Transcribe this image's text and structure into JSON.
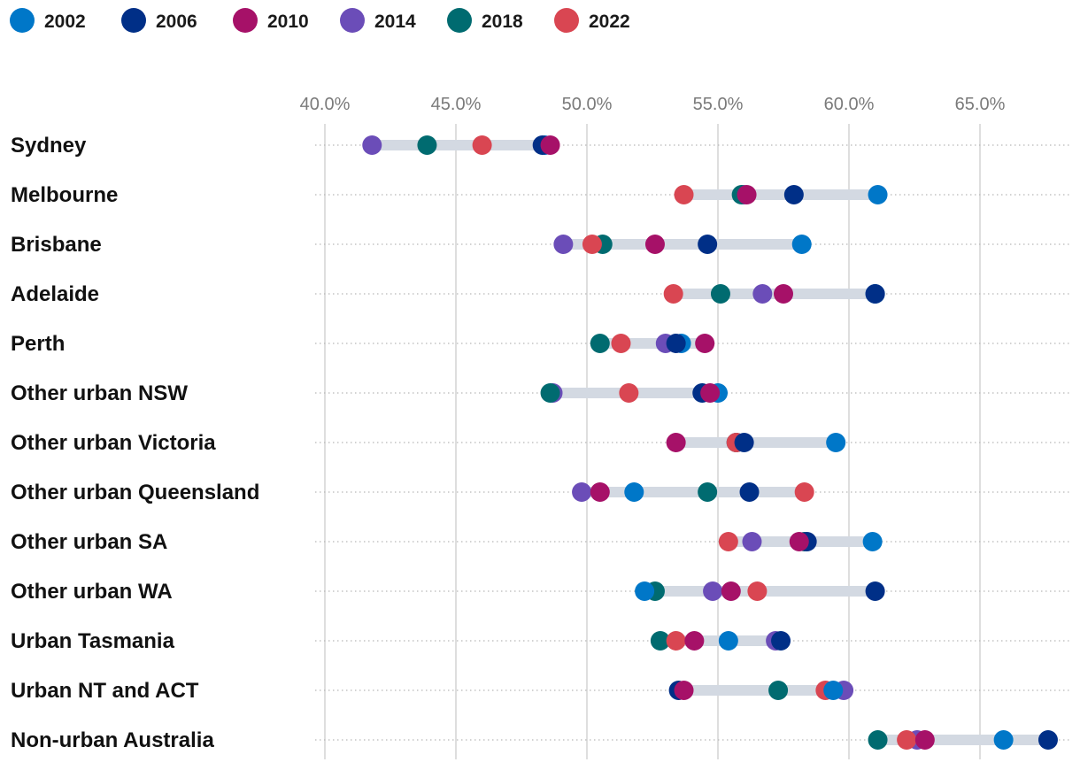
{
  "chart_data": {
    "type": "dot-range",
    "title": "",
    "xlabel": "",
    "ylabel": "",
    "xlim": [
      40.0,
      68.0
    ],
    "x_ticks": [
      40,
      45,
      50,
      55,
      60,
      65
    ],
    "x_tick_labels": [
      "40.0%",
      "45.0%",
      "50.0%",
      "55.0%",
      "60.0%",
      "65.0%"
    ],
    "legend_position": "top-left",
    "series": [
      {
        "name": "2002",
        "color": "#0077c8"
      },
      {
        "name": "2006",
        "color": "#002f87"
      },
      {
        "name": "2010",
        "color": "#a61168"
      },
      {
        "name": "2014",
        "color": "#6b4db8"
      },
      {
        "name": "2018",
        "color": "#006b70"
      },
      {
        "name": "2022",
        "color": "#d94652"
      }
    ],
    "categories": [
      {
        "label": "Sydney",
        "values": {
          "2002": 48.4,
          "2006": 48.3,
          "2010": 48.6,
          "2014": 41.8,
          "2018": 43.9,
          "2022": 46.0
        }
      },
      {
        "label": "Melbourne",
        "values": {
          "2002": 61.1,
          "2006": 57.9,
          "2010": 56.1,
          "2014": 56.0,
          "2018": 55.9,
          "2022": 53.7
        }
      },
      {
        "label": "Brisbane",
        "values": {
          "2002": 58.2,
          "2006": 54.6,
          "2010": 52.6,
          "2014": 49.1,
          "2018": 50.6,
          "2022": 50.2
        }
      },
      {
        "label": "Adelaide",
        "values": {
          "2002": 61.0,
          "2006": 61.0,
          "2010": 57.5,
          "2014": 56.7,
          "2018": 55.1,
          "2022": 53.3
        }
      },
      {
        "label": "Perth",
        "values": {
          "2002": 53.6,
          "2006": 53.4,
          "2010": 54.5,
          "2014": 53.0,
          "2018": 50.5,
          "2022": 51.3
        }
      },
      {
        "label": "Other urban NSW",
        "values": {
          "2002": 55.0,
          "2006": 54.4,
          "2010": 54.7,
          "2014": 48.7,
          "2018": 48.6,
          "2022": 51.6
        }
      },
      {
        "label": "Other urban Victoria",
        "values": {
          "2002": 59.5,
          "2006": 56.0,
          "2010": 53.4,
          "2014": 55.7,
          "2018": 55.7,
          "2022": 55.7
        }
      },
      {
        "label": "Other urban Queensland",
        "values": {
          "2002": 51.8,
          "2006": 56.2,
          "2010": 50.5,
          "2014": 49.8,
          "2018": 54.6,
          "2022": 58.3
        }
      },
      {
        "label": "Other urban SA",
        "values": {
          "2002": 60.9,
          "2006": 58.4,
          "2010": 58.1,
          "2014": 56.3,
          "2018": 58.3,
          "2022": 55.4
        }
      },
      {
        "label": "Other urban WA",
        "values": {
          "2002": 52.2,
          "2006": 61.0,
          "2010": 55.5,
          "2014": 54.8,
          "2018": 52.6,
          "2022": 56.5
        }
      },
      {
        "label": "Urban Tasmania",
        "values": {
          "2002": 55.4,
          "2006": 57.4,
          "2010": 54.1,
          "2014": 57.2,
          "2018": 52.8,
          "2022": 53.4
        }
      },
      {
        "label": "Urban NT and ACT",
        "values": {
          "2002": 59.4,
          "2006": 53.5,
          "2010": 53.7,
          "2014": 59.8,
          "2018": 57.3,
          "2022": 59.1
        }
      },
      {
        "label": "Non-urban Australia",
        "values": {
          "2002": 65.9,
          "2006": 67.6,
          "2010": 62.9,
          "2014": 62.6,
          "2018": 61.1,
          "2022": 62.2
        }
      }
    ]
  }
}
